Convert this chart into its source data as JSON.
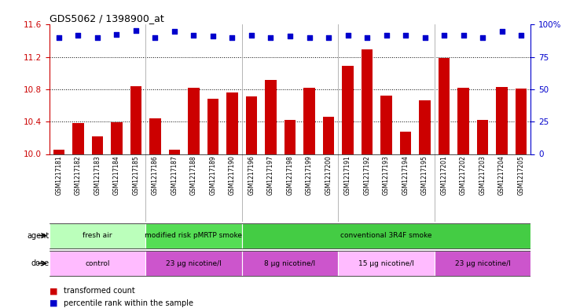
{
  "title": "GDS5062 / 1398900_at",
  "samples": [
    "GSM1217181",
    "GSM1217182",
    "GSM1217183",
    "GSM1217184",
    "GSM1217185",
    "GSM1217186",
    "GSM1217187",
    "GSM1217188",
    "GSM1217189",
    "GSM1217190",
    "GSM1217196",
    "GSM1217197",
    "GSM1217198",
    "GSM1217199",
    "GSM1217200",
    "GSM1217191",
    "GSM1217192",
    "GSM1217193",
    "GSM1217194",
    "GSM1217195",
    "GSM1217201",
    "GSM1217202",
    "GSM1217203",
    "GSM1217204",
    "GSM1217205"
  ],
  "bar_values": [
    10.05,
    10.38,
    10.22,
    10.39,
    10.84,
    10.44,
    10.05,
    10.82,
    10.68,
    10.76,
    10.71,
    10.92,
    10.42,
    10.82,
    10.46,
    11.09,
    11.29,
    10.72,
    10.28,
    10.66,
    11.19,
    10.82,
    10.42,
    10.83,
    10.81
  ],
  "percentile_values": [
    11.44,
    11.47,
    11.44,
    11.48,
    11.53,
    11.44,
    11.52,
    11.47,
    11.46,
    11.44,
    11.47,
    11.44,
    11.46,
    11.44,
    11.44,
    11.47,
    11.44,
    11.47,
    11.47,
    11.44,
    11.47,
    11.47,
    11.44,
    11.52,
    11.47
  ],
  "ylim": [
    10.0,
    11.6
  ],
  "yticks": [
    10.0,
    10.4,
    10.8,
    11.2,
    11.6
  ],
  "bar_color": "#cc0000",
  "dot_color": "#0000cc",
  "agent_groups": [
    {
      "label": "fresh air",
      "start": 0,
      "end": 4,
      "color": "#bbffbb"
    },
    {
      "label": "modified risk pMRTP smoke",
      "start": 5,
      "end": 9,
      "color": "#55dd55"
    },
    {
      "label": "conventional 3R4F smoke",
      "start": 10,
      "end": 24,
      "color": "#44cc44"
    }
  ],
  "dose_groups": [
    {
      "label": "control",
      "start": 0,
      "end": 4,
      "color": "#ffbbff"
    },
    {
      "label": "23 μg nicotine/l",
      "start": 5,
      "end": 9,
      "color": "#cc55cc"
    },
    {
      "label": "8 μg nicotine/l",
      "start": 10,
      "end": 14,
      "color": "#cc55cc"
    },
    {
      "label": "15 μg nicotine/l",
      "start": 15,
      "end": 19,
      "color": "#ffbbff"
    },
    {
      "label": "23 μg nicotine/l",
      "start": 20,
      "end": 24,
      "color": "#cc55cc"
    }
  ]
}
